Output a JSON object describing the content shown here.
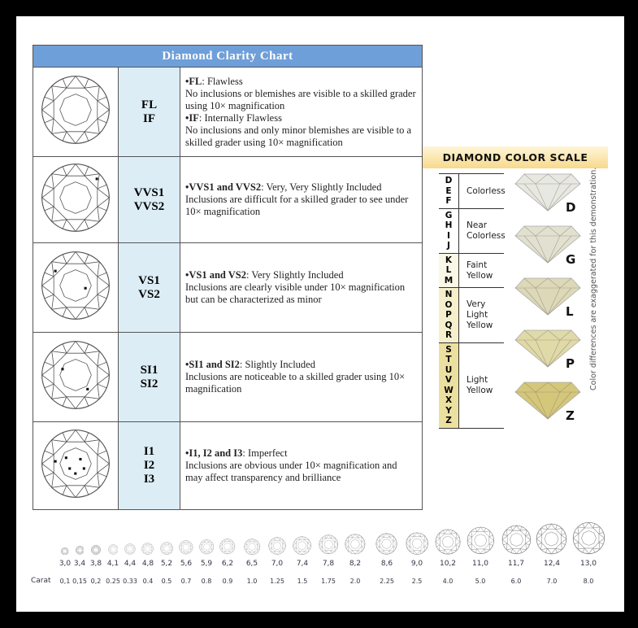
{
  "clarity_chart": {
    "title": "Diamond  Clarity Chart",
    "rows": [
      {
        "grades": [
          "FL",
          "IF"
        ],
        "inclusion_icon": "flawless-diamond-icon",
        "desc": [
          {
            "b": "•FL",
            "t": ": Flawless"
          },
          {
            "b": "",
            "t": "No inclusions or blemishes are visible to a skilled grader using 10× magnification"
          },
          {
            "b": "•IF",
            "t": ": Internally Flawless"
          },
          {
            "b": "",
            "t": "No inclusions and only minor blemishes are visible to a skilled grader using 10× magnification"
          }
        ]
      },
      {
        "grades": [
          "VVS1",
          "VVS2"
        ],
        "inclusion_icon": "vvs-diamond-icon",
        "desc": [
          {
            "b": "•VVS1 and VVS2",
            "t": ": Very, Very Slightly Included"
          },
          {
            "b": "",
            "t": "Inclusions are difficult for a skilled grader to see under 10× magnification"
          }
        ]
      },
      {
        "grades": [
          "VS1",
          "VS2"
        ],
        "inclusion_icon": "vs-diamond-icon",
        "desc": [
          {
            "b": "•VS1 and VS2",
            "t": ": Very Slightly Included"
          },
          {
            "b": "",
            "t": "Inclusions are clearly visible under 10× magnification but can be characterized  as minor"
          }
        ]
      },
      {
        "grades": [
          "SI1",
          "SI2"
        ],
        "inclusion_icon": "si-diamond-icon",
        "desc": [
          {
            "b": "•SI1 and SI2",
            "t": ": Slightly Included"
          },
          {
            "b": "",
            "t": "Inclusions are noticeable to a skilled grader using 10× magnification"
          }
        ]
      },
      {
        "grades": [
          "I1",
          "I2",
          "I3"
        ],
        "inclusion_icon": "imperfect-diamond-icon",
        "desc": [
          {
            "b": "•I1, I2 and I3",
            "t": ": Imperfect"
          },
          {
            "b": "",
            "t": "Inclusions are obvious under 10× magnification and may affect transparency and brilliance"
          }
        ]
      }
    ]
  },
  "color_scale": {
    "title": "DIAMOND COLOR SCALE",
    "note": "Color differences are exaggerated for this demonstration.",
    "groups": [
      {
        "letters": [
          "D",
          "E",
          "F"
        ],
        "label": [
          "Colorless"
        ],
        "bg": "#ffffff"
      },
      {
        "letters": [
          "G",
          "H",
          "I",
          "J"
        ],
        "label": [
          "Near",
          "Colorless"
        ],
        "bg": "#ffffff"
      },
      {
        "letters": [
          "K",
          "L",
          "M"
        ],
        "label": [
          "Faint",
          "Yellow"
        ],
        "bg": "#fbf7e6"
      },
      {
        "letters": [
          "N",
          "O",
          "P",
          "Q",
          "R"
        ],
        "label": [
          "Very",
          "Light",
          "Yellow"
        ],
        "bg": "#f6efcc"
      },
      {
        "letters": [
          "S",
          "T",
          "U",
          "V",
          "W",
          "X",
          "Y",
          "Z"
        ],
        "label": [
          "Light",
          "Yellow"
        ],
        "bg": "#ece0a0"
      }
    ],
    "samples": [
      {
        "letter": "D",
        "color": "#e8e8e2"
      },
      {
        "letter": "G",
        "color": "#e2e0d0"
      },
      {
        "letter": "L",
        "color": "#ddd8b8"
      },
      {
        "letter": "P",
        "color": "#e0d9a8"
      },
      {
        "letter": "Z",
        "color": "#d4c77a"
      }
    ]
  },
  "carat_scale": {
    "label": "Carat",
    "mm": [
      "3,0",
      "3,4",
      "3,8",
      "4,1",
      "4,4",
      "4,8",
      "5,2",
      "5,6",
      "5,9",
      "6,2",
      "6,5",
      "7,0",
      "7,4",
      "7,8",
      "8,2",
      "8,6",
      "9,0",
      "10,2",
      "11,0",
      "11,7",
      "12,4",
      "13,0"
    ],
    "carat": [
      "0,1",
      "0,15",
      "0,2",
      "0.25",
      "0.33",
      "0.4",
      "0.5",
      "0.7",
      "0.8",
      "0.9",
      "1.0",
      "1.25",
      "1.5",
      "1.75",
      "2.0",
      "2.25",
      "2.5",
      "4.0",
      "5.0",
      "6.0",
      "7.0",
      "8.0"
    ]
  }
}
